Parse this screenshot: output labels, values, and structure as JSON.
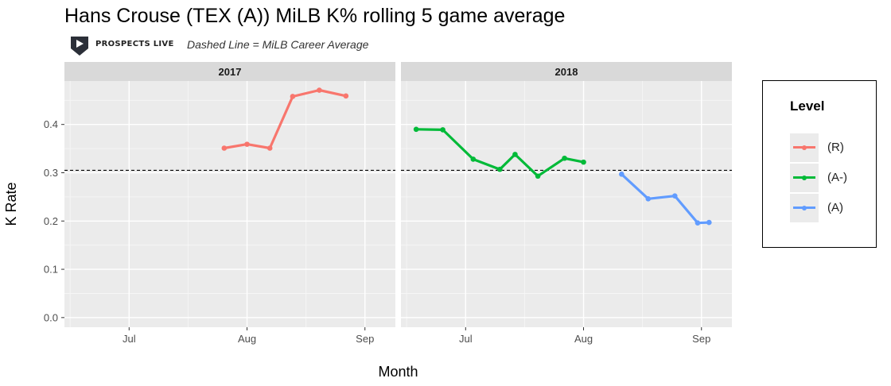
{
  "title": "Hans Crouse (TEX (A)) MiLB K% rolling 5 game average",
  "brand": "PROSPECTS LIVE",
  "subtitle": "Dashed Line = MiLB Career Average",
  "chart_data": {
    "type": "line",
    "title": "Hans Crouse (TEX (A)) MiLB K% rolling 5 game average",
    "xlabel": "Month",
    "ylabel": "K Rate",
    "ylim": [
      -0.02,
      0.49
    ],
    "yticks": [
      0.0,
      0.1,
      0.2,
      0.3,
      0.4
    ],
    "ytick_labels": [
      "0.0",
      "0.1",
      "0.2",
      "0.3",
      "0.4"
    ],
    "xtick_labels": [
      "Jul",
      "Aug",
      "Sep"
    ],
    "grid": true,
    "legend_position": "right",
    "reference_line": {
      "label": "Dashed Line = MiLB Career Average",
      "value": 0.305,
      "style": "dashed"
    },
    "legend": {
      "title": "Level",
      "entries": [
        {
          "name": "(R)",
          "color": "#f8766d"
        },
        {
          "name": "(A-)",
          "color": "#00ba38"
        },
        {
          "name": "(A)",
          "color": "#619cff"
        }
      ]
    },
    "panels": [
      {
        "label": "2017",
        "xrange": [
          "2017-06-14",
          "2017-09-09"
        ],
        "xticks": [
          "2017-07-01",
          "2017-08-01",
          "2017-09-01"
        ],
        "series": [
          {
            "name": "(R)",
            "color": "#f8766d",
            "points": [
              {
                "x": "2017-07-26",
                "y": 0.351
              },
              {
                "x": "2017-08-01",
                "y": 0.359
              },
              {
                "x": "2017-08-07",
                "y": 0.351
              },
              {
                "x": "2017-08-13",
                "y": 0.458
              },
              {
                "x": "2017-08-20",
                "y": 0.471
              },
              {
                "x": "2017-08-27",
                "y": 0.459
              }
            ]
          }
        ]
      },
      {
        "label": "2018",
        "xrange": [
          "2018-06-14",
          "2018-09-09"
        ],
        "xticks": [
          "2018-07-01",
          "2018-08-01",
          "2018-09-01"
        ],
        "series": [
          {
            "name": "(A-)",
            "color": "#00ba38",
            "points": [
              {
                "x": "2018-06-18",
                "y": 0.39
              },
              {
                "x": "2018-06-25",
                "y": 0.389
              },
              {
                "x": "2018-07-03",
                "y": 0.328
              },
              {
                "x": "2018-07-10",
                "y": 0.307
              },
              {
                "x": "2018-07-14",
                "y": 0.338
              },
              {
                "x": "2018-07-20",
                "y": 0.293
              },
              {
                "x": "2018-07-27",
                "y": 0.33
              },
              {
                "x": "2018-08-01",
                "y": 0.322
              }
            ]
          },
          {
            "name": "(A)",
            "color": "#619cff",
            "points": [
              {
                "x": "2018-08-11",
                "y": 0.297
              },
              {
                "x": "2018-08-18",
                "y": 0.246
              },
              {
                "x": "2018-08-25",
                "y": 0.252
              },
              {
                "x": "2018-08-31",
                "y": 0.196
              },
              {
                "x": "2018-09-03",
                "y": 0.197
              }
            ]
          }
        ]
      }
    ]
  }
}
